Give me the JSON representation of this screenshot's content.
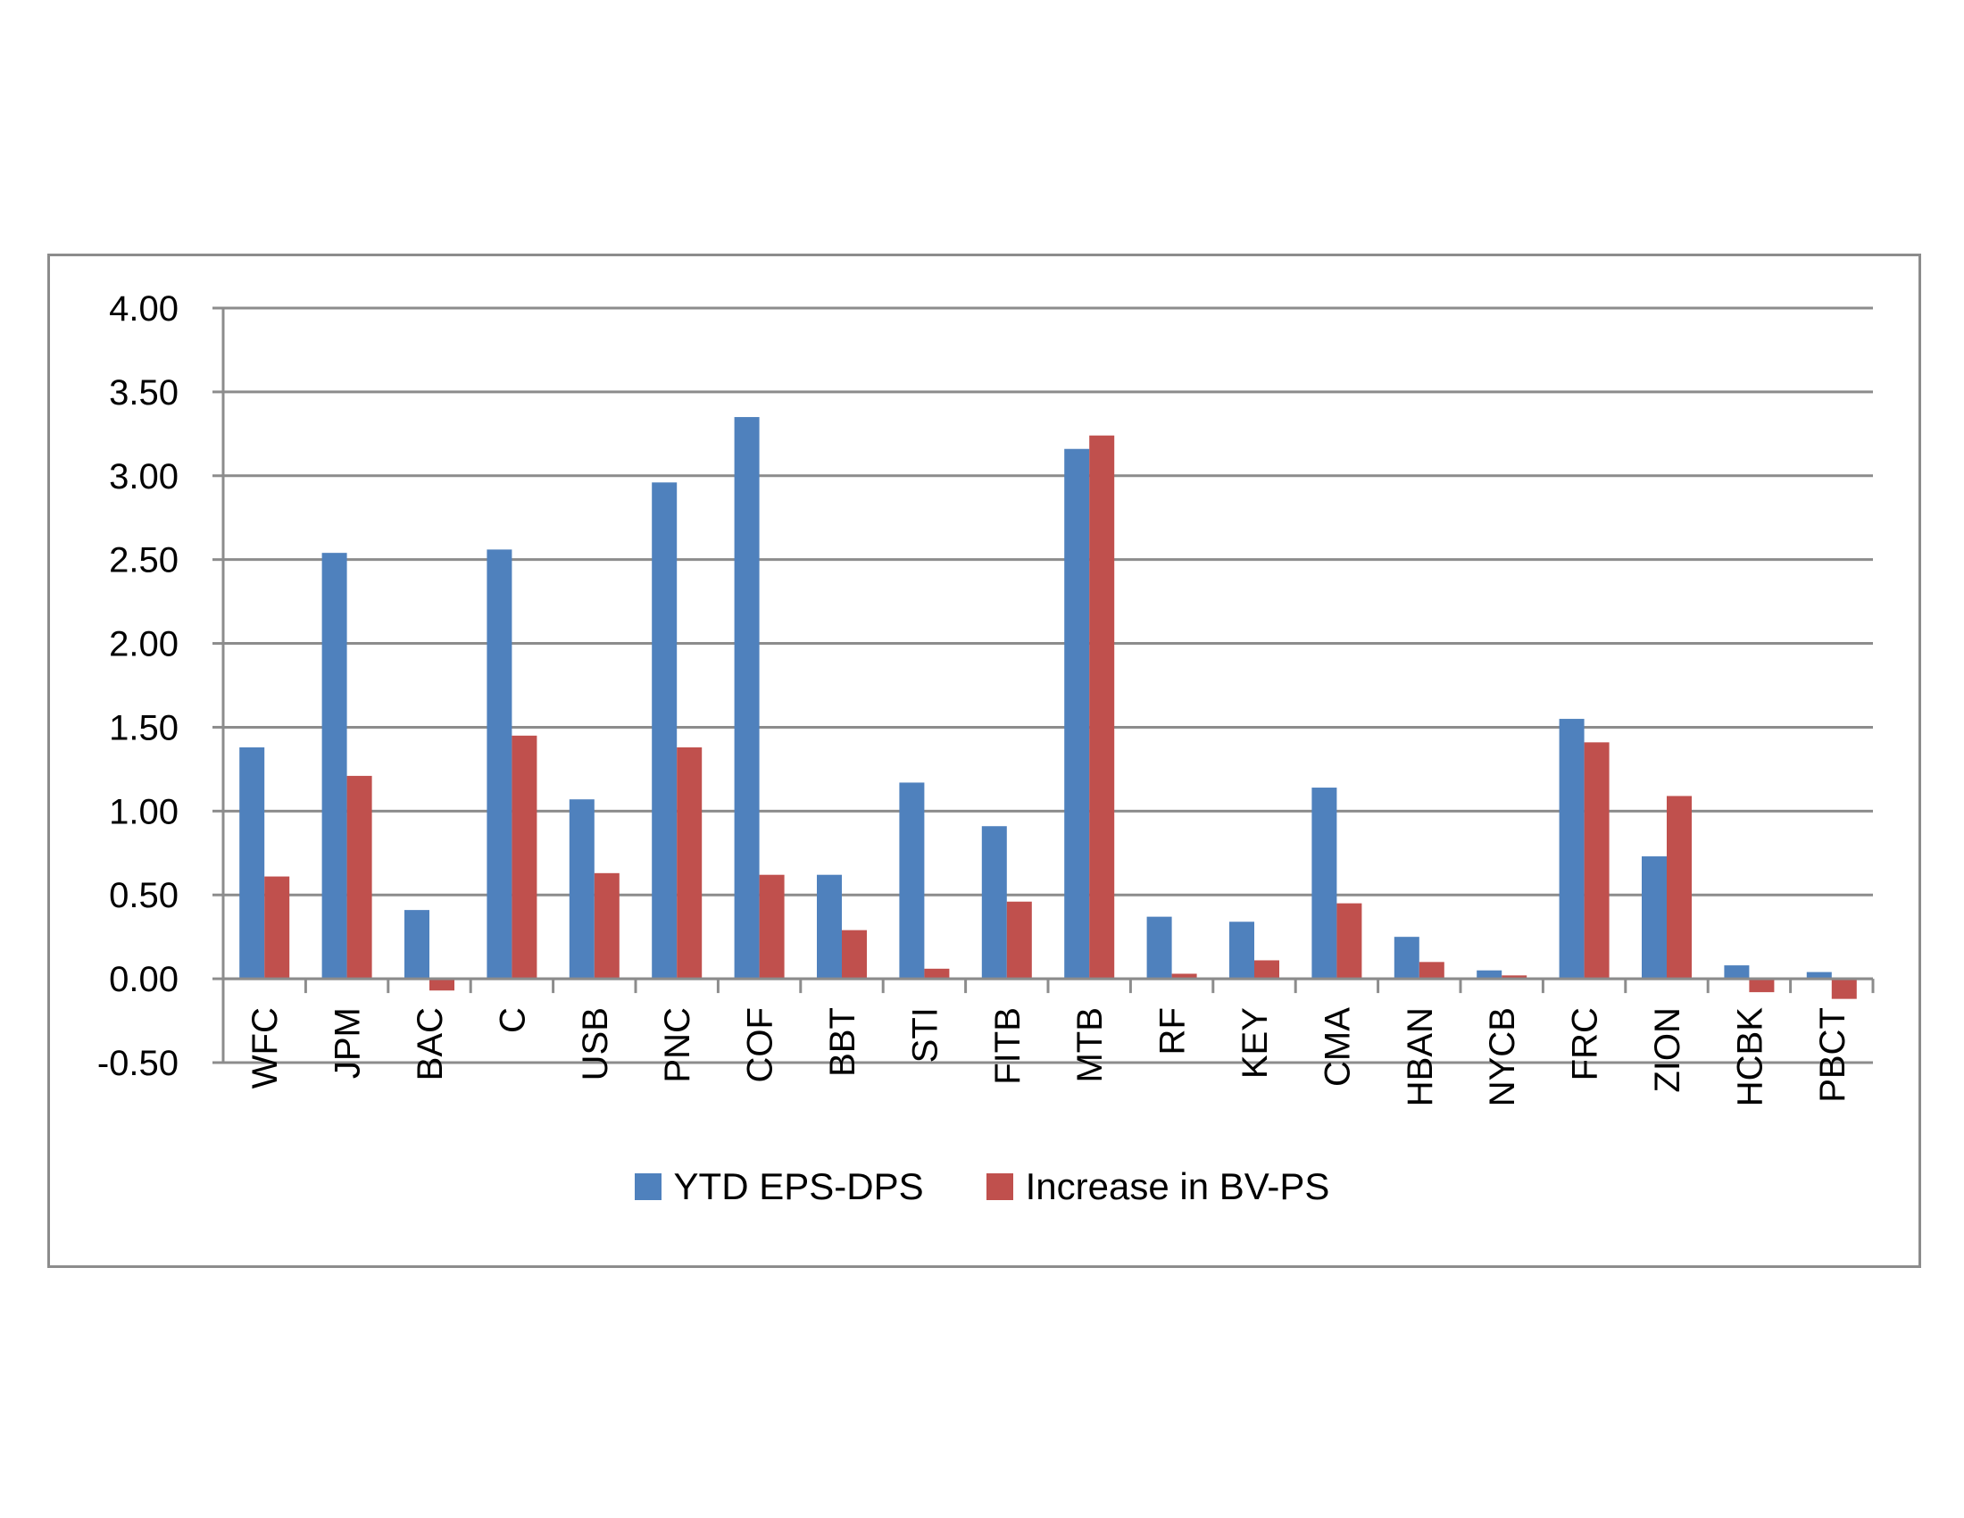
{
  "chart_data": {
    "type": "bar",
    "categories": [
      "WFC",
      "JPM",
      "BAC",
      "C",
      "USB",
      "PNC",
      "COF",
      "BBT",
      "STI",
      "FITB",
      "MTB",
      "RF",
      "KEY",
      "CMA",
      "HBAN",
      "NYCB",
      "FRC",
      "ZION",
      "HCBK",
      "PBCT"
    ],
    "series": [
      {
        "name": "YTD EPS-DPS",
        "color": "#4f81bd",
        "values": [
          1.38,
          2.54,
          0.41,
          2.56,
          1.07,
          2.96,
          3.35,
          0.62,
          1.17,
          0.91,
          3.16,
          0.37,
          0.34,
          1.14,
          0.25,
          0.05,
          1.55,
          0.73,
          0.08,
          0.04
        ]
      },
      {
        "name": "Increase in BV-PS",
        "color": "#c0504d",
        "values": [
          0.61,
          1.21,
          -0.07,
          1.45,
          0.63,
          1.38,
          0.62,
          0.29,
          0.06,
          0.46,
          3.24,
          0.03,
          0.11,
          0.45,
          0.1,
          0.02,
          1.41,
          1.09,
          -0.08,
          -0.12
        ]
      }
    ],
    "ylim": [
      -0.5,
      4.0
    ],
    "yticks": [
      "4.00",
      "3.50",
      "3.00",
      "2.50",
      "2.00",
      "1.50",
      "1.00",
      "0.50",
      "0.00",
      "-0.50"
    ],
    "ytick_values": [
      4.0,
      3.5,
      3.0,
      2.5,
      2.0,
      1.5,
      1.0,
      0.5,
      0.0,
      -0.5
    ],
    "grid": true,
    "legend_position": "bottom",
    "title": "",
    "xlabel": "",
    "ylabel": ""
  }
}
